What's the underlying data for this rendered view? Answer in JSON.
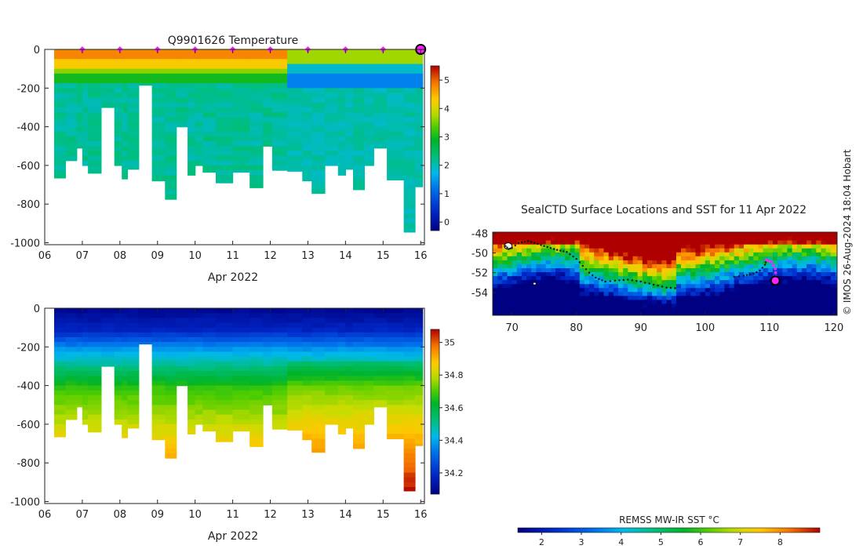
{
  "watermark": "© IMOS 26-Aug-2024 18:04 Hobart",
  "colors": {
    "background": "#ffffff",
    "profile_marker": "#ff22ff",
    "track": "#111111"
  },
  "chart_data": [
    {
      "id": "temperature",
      "type": "heatmap",
      "title": "Q9901626  Temperature",
      "xlabel": "Apr 2022",
      "ylabel": "",
      "x_ticks": [
        "06",
        "07",
        "08",
        "09",
        "10",
        "11",
        "12",
        "13",
        "14",
        "15",
        "16"
      ],
      "x_range": [
        6,
        16.1
      ],
      "y_range": [
        -1010,
        0
      ],
      "y_ticks": [
        0,
        -200,
        -400,
        -600,
        -800,
        -1000
      ],
      "colormap": "jet-like",
      "colorbar": {
        "range": [
          -0.3,
          5.5
        ],
        "ticks": [
          0,
          1,
          2,
          3,
          4,
          5
        ]
      },
      "markers_x": [
        7,
        8,
        9,
        10,
        11,
        12,
        13,
        14,
        15
      ],
      "current_profile_x": 16,
      "profiles": [
        {
          "x0": 6.25,
          "x1": 6.55,
          "max_depth": 665
        },
        {
          "x0": 6.55,
          "x1": 6.85,
          "max_depth": 575
        },
        {
          "x0": 6.85,
          "x1": 7.0,
          "max_depth": 510
        },
        {
          "x0": 7.0,
          "x1": 7.15,
          "max_depth": 600
        },
        {
          "x0": 7.15,
          "x1": 7.5,
          "max_depth": 640
        },
        {
          "x0": 7.5,
          "x1": 7.85,
          "max_depth": 300
        },
        {
          "x0": 7.85,
          "x1": 8.05,
          "max_depth": 600
        },
        {
          "x0": 8.05,
          "x1": 8.2,
          "max_depth": 670
        },
        {
          "x0": 8.2,
          "x1": 8.5,
          "max_depth": 620
        },
        {
          "x0": 8.5,
          "x1": 8.85,
          "max_depth": 185
        },
        {
          "x0": 8.85,
          "x1": 9.2,
          "max_depth": 680
        },
        {
          "x0": 9.2,
          "x1": 9.5,
          "max_depth": 775
        },
        {
          "x0": 9.5,
          "x1": 9.8,
          "max_depth": 400
        },
        {
          "x0": 9.8,
          "x1": 10.0,
          "max_depth": 650
        },
        {
          "x0": 10.0,
          "x1": 10.2,
          "max_depth": 600
        },
        {
          "x0": 10.2,
          "x1": 10.55,
          "max_depth": 635
        },
        {
          "x0": 10.55,
          "x1": 11.0,
          "max_depth": 690
        },
        {
          "x0": 11.0,
          "x1": 11.45,
          "max_depth": 635
        },
        {
          "x0": 11.45,
          "x1": 11.8,
          "max_depth": 715
        },
        {
          "x0": 11.8,
          "x1": 12.05,
          "max_depth": 500
        },
        {
          "x0": 12.05,
          "x1": 12.45,
          "max_depth": 625
        },
        {
          "x0": 12.45,
          "x1": 12.85,
          "max_depth": 630
        },
        {
          "x0": 12.85,
          "x1": 13.1,
          "max_depth": 680
        },
        {
          "x0": 13.1,
          "x1": 13.45,
          "max_depth": 745
        },
        {
          "x0": 13.45,
          "x1": 13.8,
          "max_depth": 600
        },
        {
          "x0": 13.8,
          "x1": 14.0,
          "max_depth": 650
        },
        {
          "x0": 14.0,
          "x1": 14.2,
          "max_depth": 620
        },
        {
          "x0": 14.2,
          "x1": 14.5,
          "max_depth": 725
        },
        {
          "x0": 14.5,
          "x1": 14.75,
          "max_depth": 600
        },
        {
          "x0": 14.75,
          "x1": 15.1,
          "max_depth": 510
        },
        {
          "x0": 15.1,
          "x1": 15.55,
          "max_depth": 675
        },
        {
          "x0": 15.55,
          "x1": 15.85,
          "max_depth": 945
        },
        {
          "x0": 15.85,
          "x1": 16.05,
          "max_depth": 710
        }
      ]
    },
    {
      "id": "salinity",
      "type": "heatmap",
      "title": "",
      "xlabel": "Apr 2022",
      "ylabel": "",
      "x_ticks": [
        "06",
        "07",
        "08",
        "09",
        "10",
        "11",
        "12",
        "13",
        "14",
        "15",
        "16"
      ],
      "x_range": [
        6,
        16.1
      ],
      "y_range": [
        -1010,
        0
      ],
      "y_ticks": [
        0,
        -200,
        -400,
        -600,
        -800,
        -1000
      ],
      "colormap": "jet-like",
      "colorbar": {
        "range": [
          34.07,
          35.08
        ],
        "ticks": [
          34.2,
          34.4,
          34.6,
          34.8,
          35
        ]
      }
    },
    {
      "id": "sst_map",
      "type": "heatmap",
      "title": "SealCTD Surface Locations and SST for 11 Apr 2022",
      "xlabel": "",
      "ylabel": "",
      "x_ticks": [
        70,
        80,
        90,
        100,
        110,
        120
      ],
      "y_ticks": [
        -48,
        -50,
        -52,
        -54
      ],
      "lon_range": [
        67,
        120.5
      ],
      "lat_range": [
        -56.3,
        -47.9
      ],
      "colorbar": {
        "label": "REMSS MW-IR SST °C",
        "range": [
          1.4,
          9.0
        ],
        "ticks": [
          2,
          3,
          4,
          5,
          6,
          7,
          8
        ]
      },
      "track": [
        [
          69.0,
          -49.3
        ],
        [
          69.5,
          -49.6
        ],
        [
          70.0,
          -49.5
        ],
        [
          71.0,
          -49.0
        ],
        [
          72.5,
          -48.8
        ],
        [
          74.0,
          -49.1
        ],
        [
          75.5,
          -49.4
        ],
        [
          77.0,
          -49.7
        ],
        [
          78.5,
          -49.9
        ],
        [
          80.0,
          -50.6
        ],
        [
          81.0,
          -51.3
        ],
        [
          82.0,
          -52.0
        ],
        [
          83.0,
          -52.5
        ],
        [
          84.5,
          -52.9
        ],
        [
          86.0,
          -52.8
        ],
        [
          88.0,
          -52.7
        ],
        [
          90.0,
          -52.9
        ],
        [
          92.0,
          -53.2
        ],
        [
          94.0,
          -53.5
        ],
        [
          96.0,
          -53.6
        ],
        [
          104.5,
          -52.4
        ],
        [
          106.0,
          -52.3
        ],
        [
          107.5,
          -52.1
        ],
        [
          108.5,
          -51.8
        ],
        [
          109.3,
          -51.2
        ],
        [
          109.5,
          -50.7
        ]
      ],
      "recent_track": [
        [
          109.5,
          -50.7
        ],
        [
          110.3,
          -50.9
        ],
        [
          110.9,
          -51.6
        ],
        [
          111.0,
          -52.4
        ],
        [
          110.9,
          -52.8
        ]
      ],
      "current_position": [
        110.9,
        -52.8
      ]
    }
  ]
}
